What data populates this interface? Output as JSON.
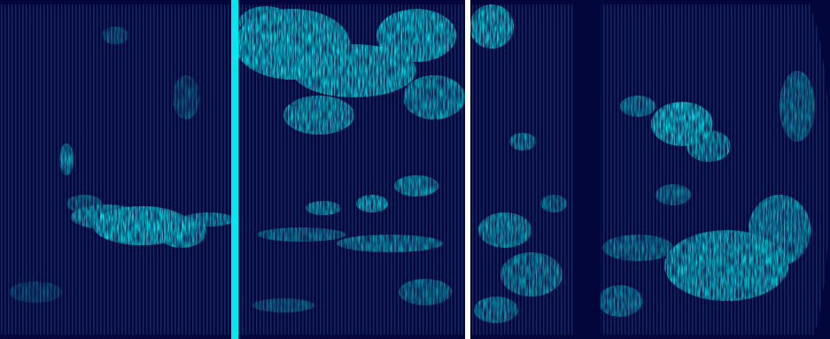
{
  "image": {
    "description_kind": "satellite-scan-imagery",
    "panels": [
      {
        "id": "panel-1"
      },
      {
        "id": "panel-2"
      },
      {
        "id": "panel-3"
      },
      {
        "id": "panel-4"
      }
    ],
    "colors": {
      "background": "#02063a",
      "scanline": "#0b2d6e",
      "cloud": "#00f0f0",
      "cloud_dim": "#0aa7c4",
      "divider_cyan": "#00e8f0",
      "divider_white": "#ffffff",
      "gap": "#02063a"
    }
  }
}
